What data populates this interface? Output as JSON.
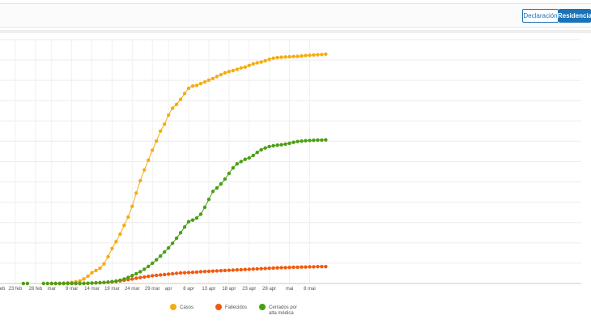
{
  "toolbar": {
    "declaracion_label": "Declaración",
    "residencia_label": "Residencia",
    "active_color": "#1a73b8"
  },
  "chart_data": {
    "type": "line",
    "title": "",
    "xlabel": "",
    "ylabel": "",
    "grid": true,
    "legend_position": "bottom-center",
    "x_tick_labels": [
      "feb",
      "23 feb",
      "28 feb",
      "mar",
      "9 mar",
      "14 mar",
      "19 mar",
      "24 mar",
      "29 mar",
      "apr",
      "8 apr",
      "13 apr",
      "18 apr",
      "23 apr",
      "28 apr",
      "mai",
      "8 mai"
    ],
    "x_start": "2020-02-18",
    "series": [
      {
        "name": "Casos",
        "color": "#f5ac10",
        "start": "2020-03-03",
        "values": [
          0,
          0,
          0,
          0.2,
          0.3,
          0.5,
          0.8,
          1.2,
          2.2,
          3.6,
          5.3,
          6.4,
          7.5,
          9.7,
          13.2,
          17.2,
          20.6,
          24.3,
          28.6,
          32.7,
          38,
          44.5,
          50.6,
          55.9,
          60.7,
          65.6,
          70.1,
          75,
          78.4,
          82.9,
          86.3,
          88.2,
          90.6,
          93.5,
          96.1,
          97.2,
          97.5,
          98.4,
          99.2,
          100.1,
          100.9,
          101.9,
          102.8,
          103.7,
          104.3,
          104.8,
          105.4,
          106.1,
          106.5,
          107.3,
          108.1,
          108.6,
          109,
          109.6,
          110.3,
          110.9,
          111.2,
          111.4,
          111.5,
          111.6,
          111.7,
          111.8,
          112,
          112.2,
          112.3,
          112.5,
          112.6,
          112.7,
          112.9
        ]
      },
      {
        "name": "Fallecidos",
        "color": "#f05a0f",
        "start": "2020-03-03",
        "values": [
          0,
          0,
          0,
          0,
          0,
          0,
          0,
          0,
          0.1,
          0.1,
          0.2,
          0.3,
          0.4,
          0.5,
          0.6,
          0.8,
          1,
          1.3,
          1.6,
          1.9,
          2.2,
          2.6,
          2.9,
          3.2,
          3.5,
          3.8,
          4,
          4.2,
          4.4,
          4.6,
          4.8,
          5,
          5.2,
          5.3,
          5.4,
          5.5,
          5.6,
          5.8,
          5.9,
          6,
          6.1,
          6.2,
          6.3,
          6.4,
          6.5,
          6.6,
          6.7,
          6.8,
          6.9,
          7,
          7.1,
          7.2,
          7.3,
          7.4,
          7.5,
          7.6,
          7.7,
          7.8,
          7.8,
          7.9,
          8,
          8,
          8.1,
          8.1,
          8.2,
          8.2,
          8.3,
          8.3,
          8.3
        ]
      },
      {
        "name": "Cerrados por alta médica",
        "color": "#4a9e14",
        "start": "2020-03-03",
        "values": [
          0,
          0,
          0,
          0,
          0,
          0,
          0,
          0,
          0,
          0.1,
          0.2,
          0.3,
          0.4,
          0.5,
          0.7,
          0.9,
          1.2,
          1.6,
          2.2,
          3,
          3.9,
          4.8,
          5.8,
          7,
          8.4,
          10,
          11.7,
          13.5,
          15.5,
          17.5,
          19.8,
          22.3,
          25,
          27.8,
          30.4,
          31.2,
          32.2,
          34.1,
          37.5,
          41.4,
          45.3,
          47,
          49,
          51.4,
          54.2,
          56.9,
          58.9,
          60,
          61.1,
          61.8,
          63,
          64.5,
          65.8,
          66.7,
          67.4,
          67.8,
          68.1,
          68.3,
          68.6,
          69,
          69.5,
          69.9,
          70.1,
          70.3,
          70.4,
          70.5,
          70.6,
          70.6,
          70.7
        ]
      }
    ],
    "early_zero_points": [
      "2020-02-25",
      "2020-02-26",
      "2020-03-01",
      "2020-03-02"
    ],
    "ylim": [
      0,
      120
    ]
  }
}
